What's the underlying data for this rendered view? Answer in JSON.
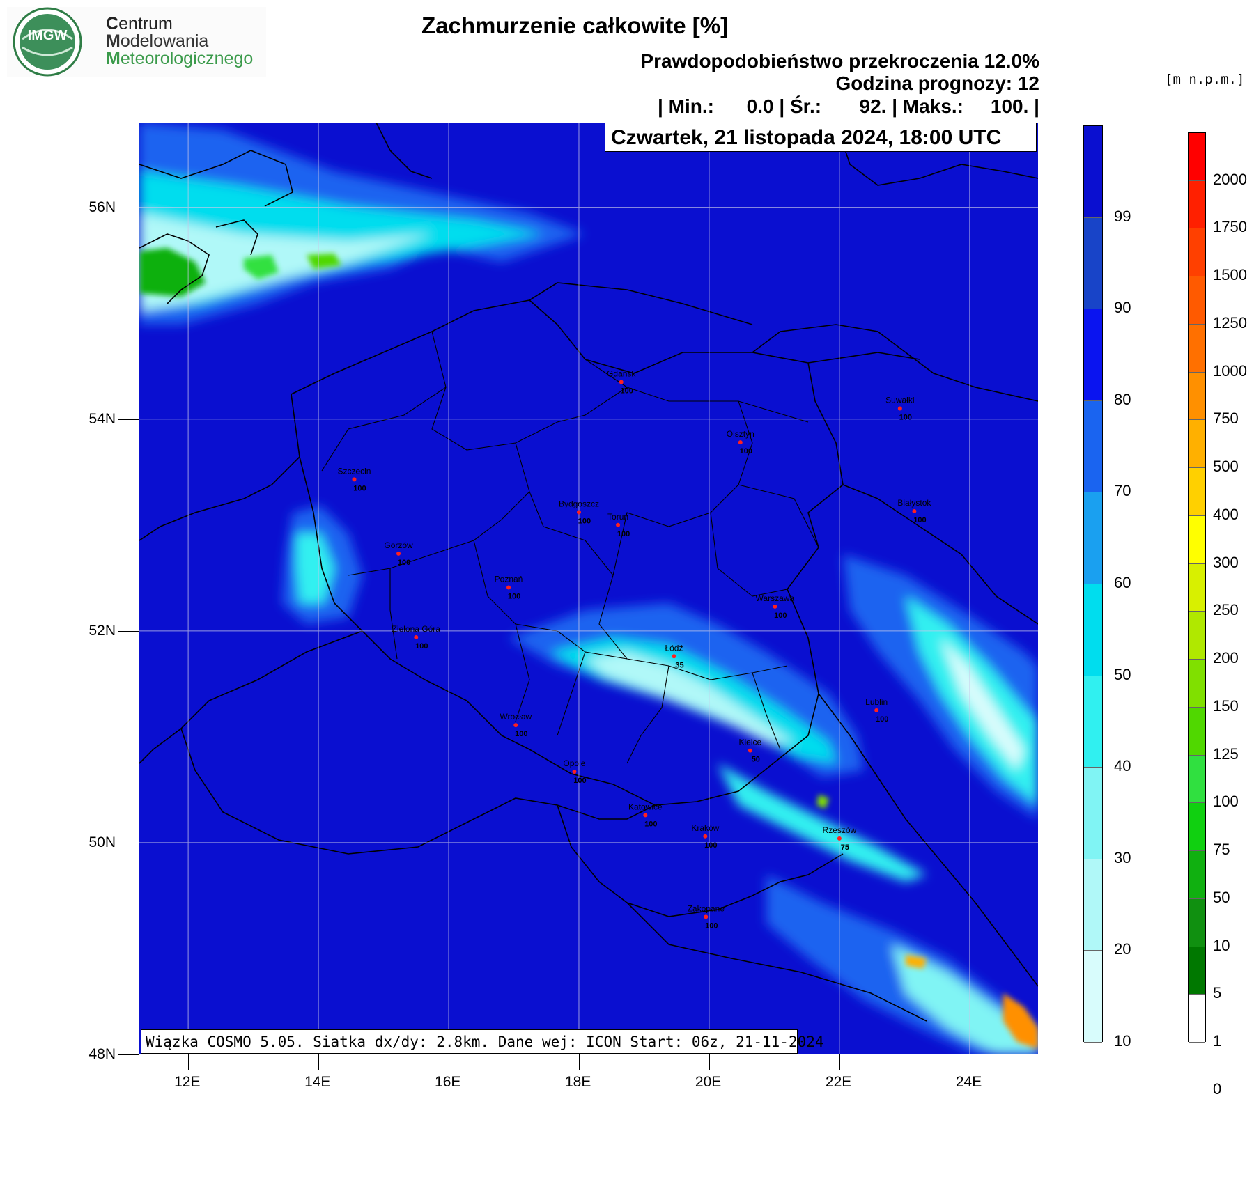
{
  "logo": {
    "badge": "IMGW",
    "line1_first": "C",
    "line1_rest": "entrum",
    "line2_first": "M",
    "line2_rest": "odelowania",
    "line3_first": "M",
    "line3_rest": "eteorologicznego"
  },
  "title": "Zachmurzenie całkowite [%]",
  "subtitle_probability": "Prawdopodobieństwo przekroczenia 12.0%",
  "subtitle_hour": "Godzina prognozy: 12",
  "stats": "| Min.:      0.0 | Śr.:       92. | Maks.:     100. |",
  "date_label": "Czwartek, 21 listopada 2024, 18:00 UTC",
  "footer": "Wiązka COSMO 5.05. Siatka dx/dy: 2.8km. Dane wej: ICON Start: 06z, 21-11-2024",
  "map": {
    "lat_range": [
      48,
      56.8
    ],
    "lon_range": [
      11.25,
      25.05
    ],
    "lat_ticks": [
      "56N",
      "54N",
      "52N",
      "50N",
      "48N"
    ],
    "lat_values": [
      56,
      54,
      52,
      50,
      48
    ],
    "lon_ticks": [
      "12E",
      "14E",
      "16E",
      "18E",
      "20E",
      "22E",
      "24E"
    ],
    "lon_values": [
      12,
      14,
      16,
      18,
      20,
      22,
      24
    ],
    "background_color": "#0a0fd0",
    "cities": [
      {
        "name": "Gdańsk",
        "value": "100",
        "lon": 18.65,
        "lat": 54.35
      },
      {
        "name": "Suwałki",
        "value": "100",
        "lon": 22.93,
        "lat": 54.1
      },
      {
        "name": "Olsztyn",
        "value": "100",
        "lon": 20.48,
        "lat": 53.78
      },
      {
        "name": "Szczecin",
        "value": "100",
        "lon": 14.55,
        "lat": 53.43
      },
      {
        "name": "Bydgoszcz",
        "value": "100",
        "lon": 18.0,
        "lat": 53.12
      },
      {
        "name": "Toruń",
        "value": "100",
        "lon": 18.6,
        "lat": 53.0
      },
      {
        "name": "Białystok",
        "value": "100",
        "lon": 23.15,
        "lat": 53.13
      },
      {
        "name": "Gorzów",
        "value": "100",
        "lon": 15.23,
        "lat": 52.73
      },
      {
        "name": "Poznań",
        "value": "100",
        "lon": 16.92,
        "lat": 52.41
      },
      {
        "name": "Warszawa",
        "value": "100",
        "lon": 21.01,
        "lat": 52.23
      },
      {
        "name": "Zielona Góra",
        "value": "100",
        "lon": 15.5,
        "lat": 51.94
      },
      {
        "name": "Łódź",
        "value": "35",
        "lon": 19.46,
        "lat": 51.76
      },
      {
        "name": "Lublin",
        "value": "100",
        "lon": 22.57,
        "lat": 51.25
      },
      {
        "name": "Wrocław",
        "value": "100",
        "lon": 17.03,
        "lat": 51.11
      },
      {
        "name": "Kielce",
        "value": "50",
        "lon": 20.63,
        "lat": 50.87
      },
      {
        "name": "Opole",
        "value": "100",
        "lon": 17.93,
        "lat": 50.67
      },
      {
        "name": "Katowice",
        "value": "100",
        "lon": 19.02,
        "lat": 50.26
      },
      {
        "name": "Rzeszów",
        "value": "75",
        "lon": 22.0,
        "lat": 50.04
      },
      {
        "name": "Kraków",
        "value": "100",
        "lon": 19.94,
        "lat": 50.06
      },
      {
        "name": "Zakopane",
        "value": "100",
        "lon": 19.95,
        "lat": 49.3
      }
    ]
  },
  "cloud_legend": {
    "labels": [
      "99",
      "90",
      "80",
      "70",
      "60",
      "50",
      "40",
      "30",
      "20",
      "10"
    ],
    "colors": [
      "#0a0fd0",
      "#1844c8",
      "#0a14f0",
      "#1a64f0",
      "#1aa0f0",
      "#00ddee",
      "#30f0f0",
      "#80f4f4",
      "#b0f8f8",
      "#d8fcfc"
    ]
  },
  "elevation_legend": {
    "unit": "[m n.p.m.]",
    "labels": [
      "2000",
      "1750",
      "1500",
      "1250",
      "1000",
      "750",
      "500",
      "400",
      "300",
      "250",
      "200",
      "150",
      "125",
      "100",
      "75",
      "50",
      "10",
      "5",
      "1",
      "0"
    ],
    "colors": [
      "#ff0000",
      "#ff2000",
      "#ff4000",
      "#ff5a00",
      "#ff7000",
      "#ff9000",
      "#ffb000",
      "#ffd000",
      "#ffff00",
      "#d8f000",
      "#b0e800",
      "#80e000",
      "#50d800",
      "#30e040",
      "#10d010",
      "#10b010",
      "#109010",
      "#007800",
      "#ffffff"
    ]
  }
}
